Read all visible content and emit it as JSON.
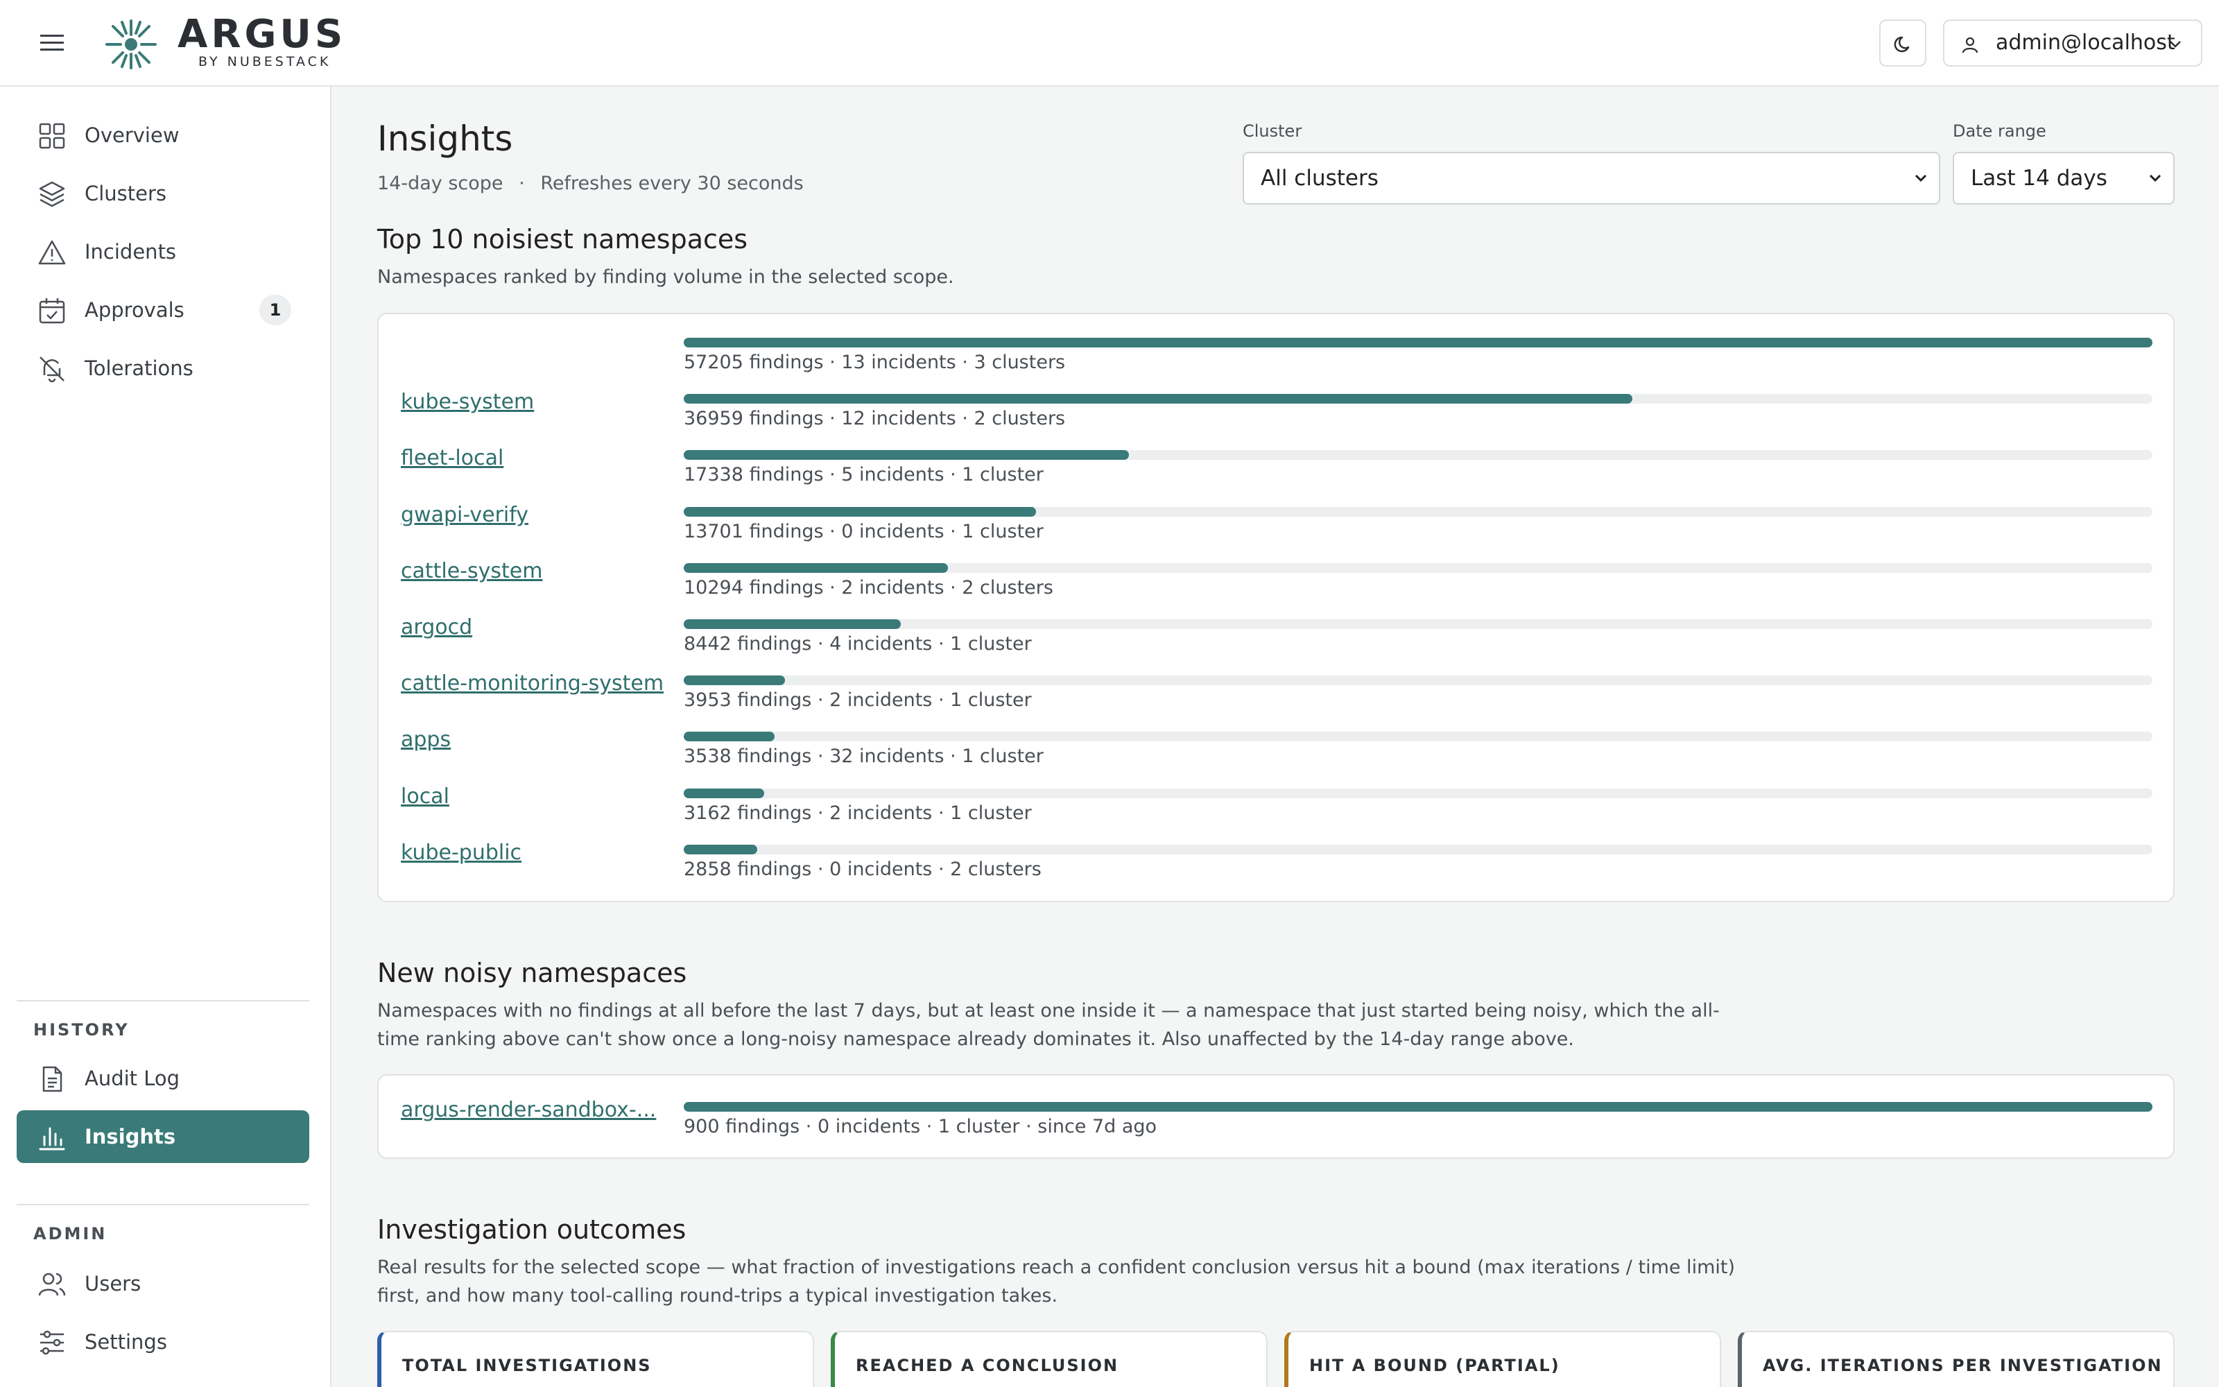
{
  "brand": {
    "name": "ARGUS",
    "sub": "BY NUBESTACK"
  },
  "header": {
    "user_label": "admin@localhost"
  },
  "sidebar": {
    "items": [
      {
        "label": "Overview",
        "icon": "grid-icon"
      },
      {
        "label": "Clusters",
        "icon": "layers-icon"
      },
      {
        "label": "Incidents",
        "icon": "warning-triangle-icon"
      },
      {
        "label": "Approvals",
        "icon": "calendar-check-icon",
        "badge": "1"
      },
      {
        "label": "Tolerations",
        "icon": "bell-off-icon"
      }
    ],
    "history_heading": "HISTORY",
    "history_items": [
      {
        "label": "Audit Log",
        "icon": "document-icon"
      },
      {
        "label": "Insights",
        "icon": "bar-chart-icon",
        "active": true
      }
    ],
    "admin_heading": "ADMIN",
    "admin_items": [
      {
        "label": "Users",
        "icon": "users-icon"
      },
      {
        "label": "Settings",
        "icon": "sliders-icon"
      }
    ]
  },
  "page": {
    "title": "Insights",
    "scope": "14-day scope",
    "separator": "·",
    "refresh": "Refreshes every 30 seconds"
  },
  "filters": {
    "cluster_label": "Cluster",
    "cluster_value": "All clusters",
    "date_label": "Date range",
    "date_value": "Last 14 days"
  },
  "top_namespaces": {
    "title": "Top 10 noisiest namespaces",
    "description": "Namespaces ranked by finding volume in the selected scope.",
    "rows": [
      {
        "name": "",
        "stat": "57205 findings · 13 incidents · 3 clusters",
        "share": 1.0
      },
      {
        "name": "kube-system",
        "stat": "36959 findings · 12 incidents · 2 clusters",
        "share": 0.646
      },
      {
        "name": "fleet-local",
        "stat": "17338 findings · 5 incidents · 1 cluster",
        "share": 0.303
      },
      {
        "name": "gwapi-verify",
        "stat": "13701 findings · 0 incidents · 1 cluster",
        "share": 0.24
      },
      {
        "name": "cattle-system",
        "stat": "10294 findings · 2 incidents · 2 clusters",
        "share": 0.18
      },
      {
        "name": "argocd",
        "stat": "8442 findings · 4 incidents · 1 cluster",
        "share": 0.148
      },
      {
        "name": "cattle-monitoring-system",
        "stat": "3953 findings · 2 incidents · 1 cluster",
        "share": 0.069
      },
      {
        "name": "apps",
        "stat": "3538 findings · 32 incidents · 1 cluster",
        "share": 0.062
      },
      {
        "name": "local",
        "stat": "3162 findings · 2 incidents · 1 cluster",
        "share": 0.055
      },
      {
        "name": "kube-public",
        "stat": "2858 findings · 0 incidents · 2 clusters",
        "share": 0.05
      }
    ]
  },
  "new_noisy": {
    "title": "New noisy namespaces",
    "description": "Namespaces with no findings at all before the last 7 days, but at least one inside it — a namespace that just started being noisy, which the all-time ranking above can't show once a long-noisy namespace already dominates it. Also unaffected by the 14-day range above.",
    "rows": [
      {
        "name": "argus-render-sandbox-...",
        "stat": "900 findings · 0 incidents · 1 cluster · since 7d ago",
        "share": 1.0
      }
    ]
  },
  "outcomes": {
    "title": "Investigation outcomes",
    "description": "Real results for the selected scope — what fraction of investigations reach a confident conclusion versus hit a bound (max iterations / time limit) first, and how many tool-calling round-trips a typical investigation takes.",
    "cards": [
      {
        "label": "TOTAL INVESTIGATIONS",
        "accent": "#2f5fa8"
      },
      {
        "label": "REACHED A CONCLUSION",
        "accent": "#3a8a4a"
      },
      {
        "label": "HIT A BOUND (PARTIAL)",
        "accent": "#b07a1e"
      },
      {
        "label": "AVG. ITERATIONS PER INVESTIGATION",
        "accent": "#5a6470"
      }
    ]
  },
  "colors": {
    "accent": "#3a7a78",
    "track": "#eceeef"
  }
}
